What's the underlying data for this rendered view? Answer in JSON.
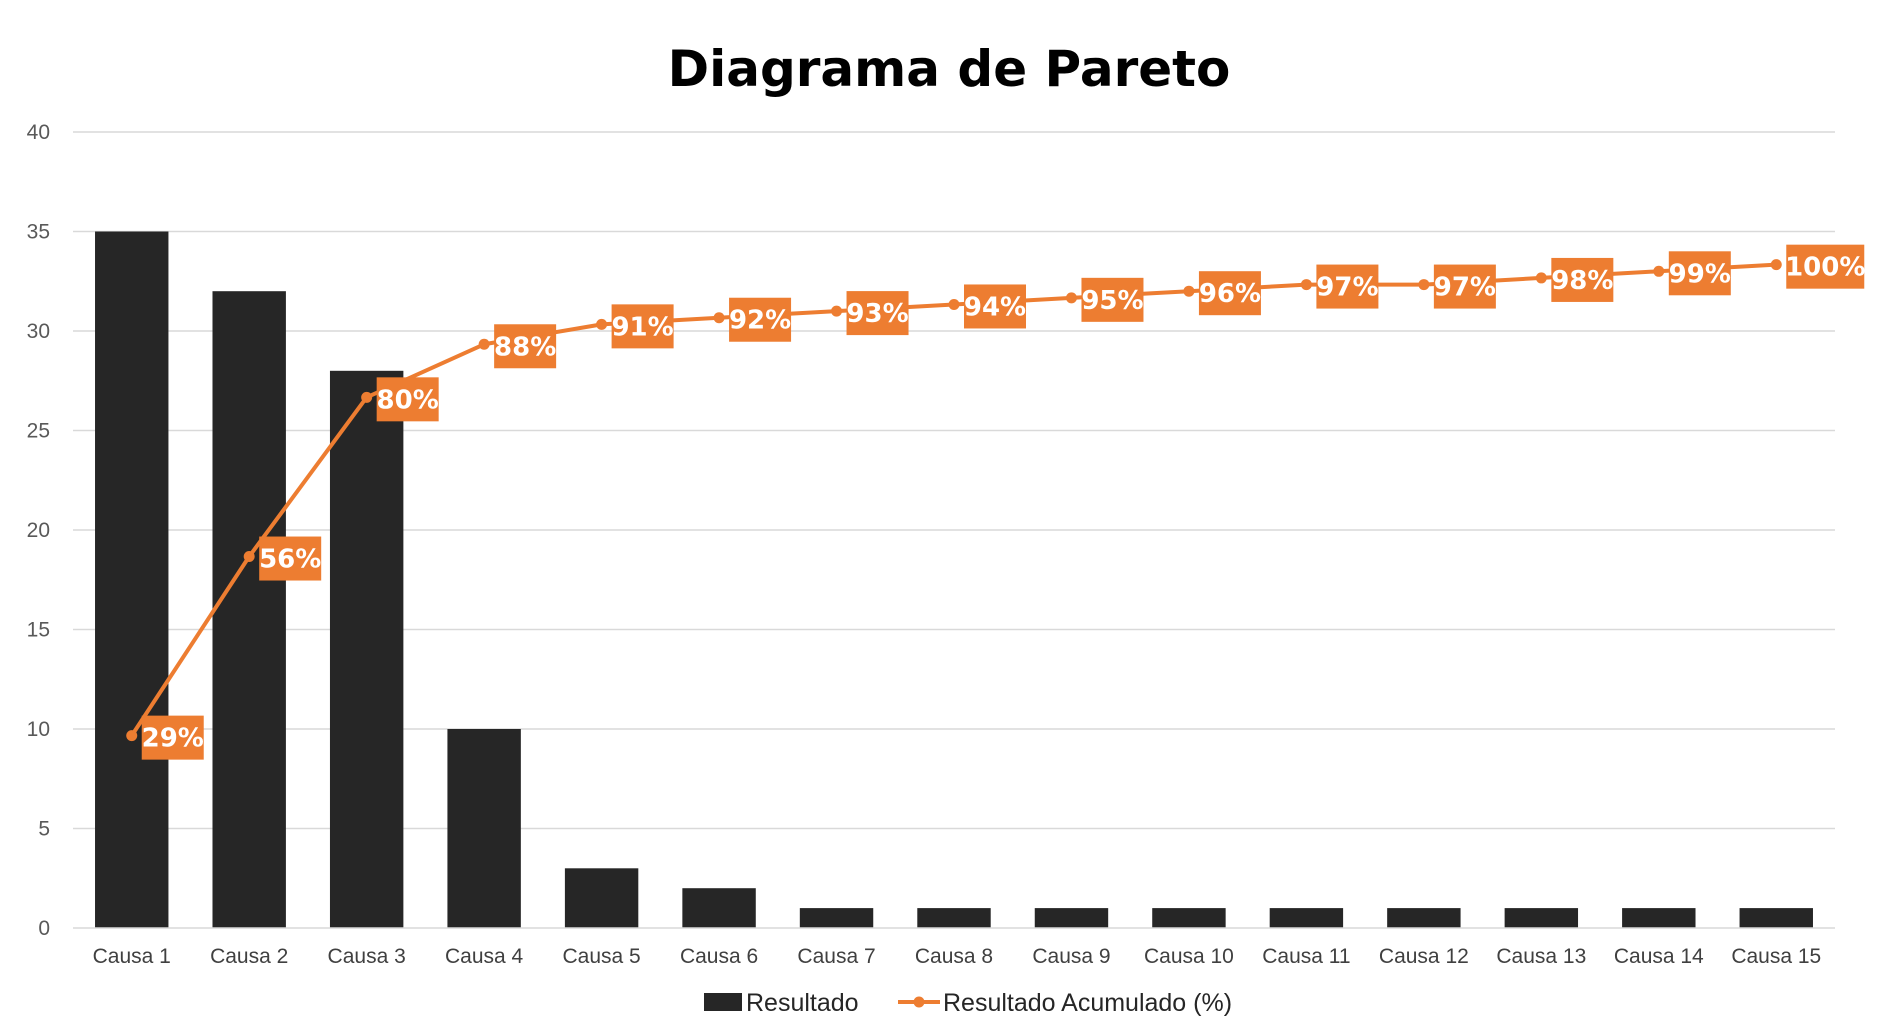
{
  "chart_data": {
    "type": "bar",
    "title": "Diagrama de Pareto",
    "xlabel": "",
    "ylabel": "",
    "ylim": [
      0,
      40
    ],
    "yticks": [
      0,
      5,
      10,
      15,
      20,
      25,
      30,
      35,
      40
    ],
    "grid": true,
    "legend_position": "bottom",
    "categories": [
      "Causa 1",
      "Causa 2",
      "Causa 3",
      "Causa 4",
      "Causa 5",
      "Causa 6",
      "Causa 7",
      "Causa 8",
      "Causa 9",
      "Causa 10",
      "Causa 11",
      "Causa 12",
      "Causa 13",
      "Causa 14",
      "Causa 15"
    ],
    "series": [
      {
        "name": "Resultado",
        "type": "bar",
        "color": "#262626",
        "values": [
          35,
          32,
          28,
          10,
          3,
          2,
          1,
          1,
          1,
          1,
          1,
          1,
          1,
          1,
          1
        ]
      },
      {
        "name": "Resultado Acumulado (%)",
        "type": "line",
        "color": "#ED7D31",
        "values": [
          29,
          56,
          80,
          88,
          91,
          92,
          93,
          94,
          95,
          96,
          97,
          97,
          98,
          99,
          100
        ],
        "labels": [
          "29%",
          "56%",
          "80%",
          "88%",
          "91%",
          "92%",
          "93%",
          "94%",
          "95%",
          "96%",
          "97%",
          "97%",
          "98%",
          "99%",
          "100%"
        ]
      }
    ]
  }
}
